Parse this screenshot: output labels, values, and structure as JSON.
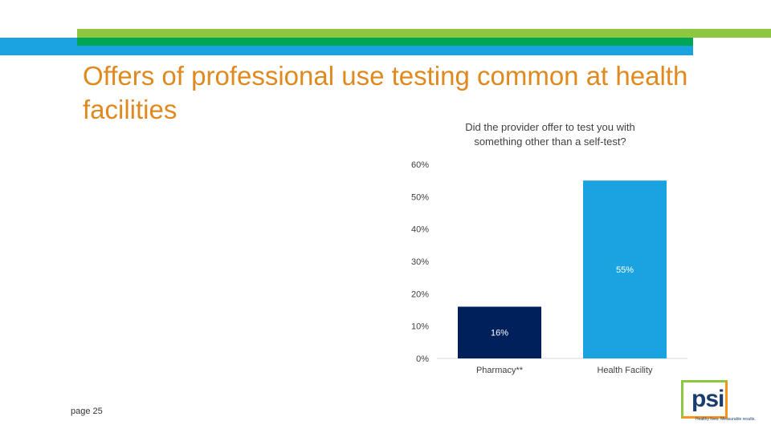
{
  "header": {
    "title": "Offers of professional use testing common at health facilities",
    "colors": {
      "green": "#8dc63f",
      "blue": "#1aa3e0",
      "dark_green": "#00a651",
      "title": "#e0891e"
    }
  },
  "footer": {
    "page_label": "page 25"
  },
  "logo": {
    "text": "psi",
    "tagline": "Healthy lives. Measurable results."
  },
  "chart_data": {
    "type": "bar",
    "title": "Did the provider offer to test you with something other than a self-test?",
    "categories": [
      "Pharmacy**",
      "Health Facility"
    ],
    "values": [
      16,
      55
    ],
    "data_labels": [
      "16%",
      "55%"
    ],
    "bar_colors": [
      "#00205b",
      "#1aa3e0"
    ],
    "ylim": [
      0,
      60
    ],
    "yticks": [
      0,
      10,
      20,
      30,
      40,
      50,
      60
    ],
    "ytick_labels": [
      "0%",
      "10%",
      "20%",
      "30%",
      "40%",
      "50%",
      "60%"
    ],
    "xlabel": "",
    "ylabel": "",
    "grid": false,
    "legend": "none"
  }
}
